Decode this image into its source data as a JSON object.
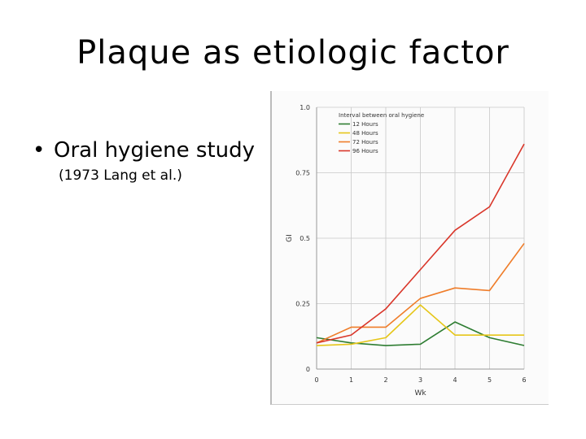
{
  "slide": {
    "title": "Plaque as etiologic factor",
    "bullet": "Oral hygiene study",
    "citation": "(1973 Lang et al.)"
  },
  "chart_data": {
    "type": "line",
    "xlabel": "Wk",
    "ylabel": "GI",
    "x": [
      0,
      1,
      2,
      3,
      4,
      5,
      6
    ],
    "xticks": [
      "0",
      "1",
      "2",
      "3",
      "4",
      "5",
      "6"
    ],
    "yticks": [
      "0",
      "0.25",
      "0.5",
      "0.75",
      "1.0"
    ],
    "ylim": [
      0,
      1.0
    ],
    "xlim": [
      0,
      6
    ],
    "grid": true,
    "legend_title": "Interval between oral hygiene",
    "legend_position": "top-left",
    "series": [
      {
        "name": "12 Hours",
        "color": "#2e7d32",
        "values": [
          0.12,
          0.1,
          0.09,
          0.095,
          0.18,
          0.12,
          0.09
        ]
      },
      {
        "name": "48 Hours",
        "color": "#e6c619",
        "values": [
          0.09,
          0.095,
          0.12,
          0.245,
          0.13,
          0.13,
          0.13
        ]
      },
      {
        "name": "72 Hours",
        "color": "#ef7d2a",
        "values": [
          0.1,
          0.16,
          0.16,
          0.27,
          0.31,
          0.3,
          0.48
        ]
      },
      {
        "name": "96 Hours",
        "color": "#d9362a",
        "values": [
          0.1,
          0.13,
          0.23,
          0.38,
          0.53,
          0.62,
          0.86
        ]
      }
    ]
  }
}
